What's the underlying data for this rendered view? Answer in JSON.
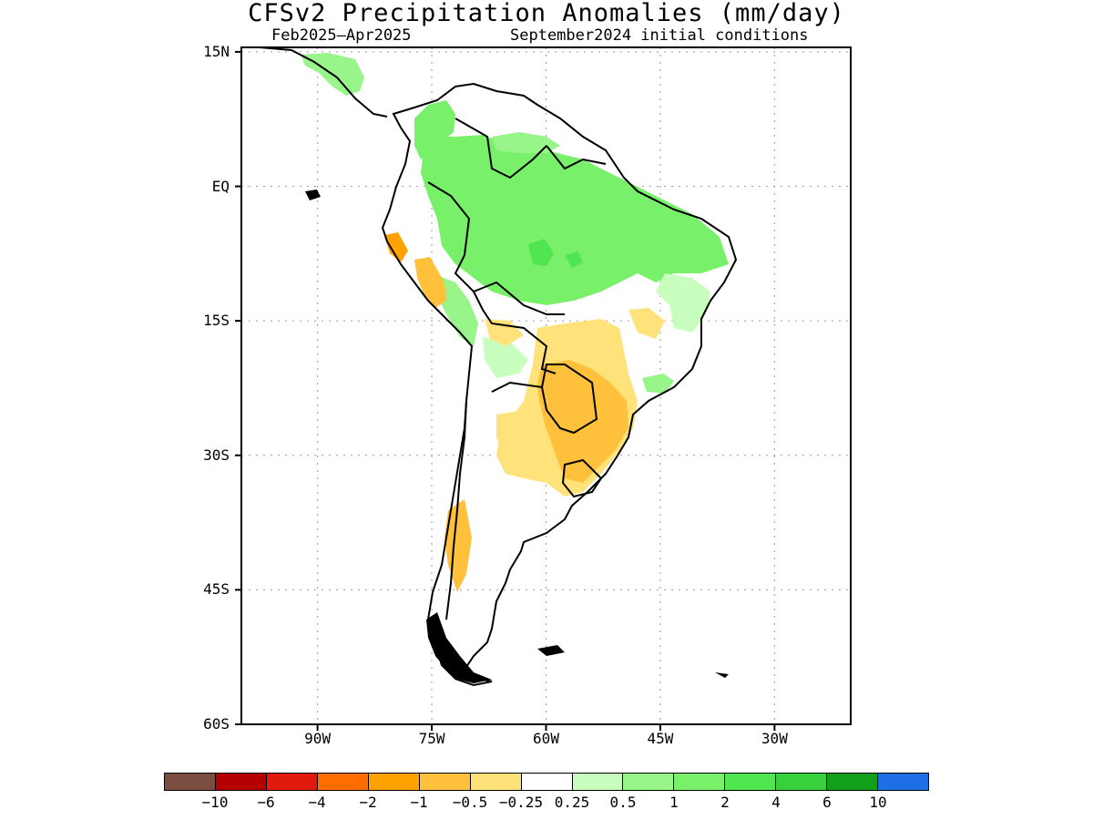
{
  "title": "CFSv2 Precipitation Anomalies (mm/day)",
  "period": "Feb2025–Apr2025",
  "initial_conditions": "September2024 initial conditions",
  "map": {
    "lat_labels": [
      {
        "text": "15N",
        "lat": 15
      },
      {
        "text": "EQ",
        "lat": 0
      },
      {
        "text": "15S",
        "lat": -15
      },
      {
        "text": "30S",
        "lat": -30
      },
      {
        "text": "45S",
        "lat": -45
      },
      {
        "text": "60S",
        "lat": -60
      }
    ],
    "lon_labels": [
      {
        "text": "90W",
        "lon": -90
      },
      {
        "text": "75W",
        "lon": -75
      },
      {
        "text": "60W",
        "lon": -60
      },
      {
        "text": "45W",
        "lon": -45
      },
      {
        "text": "30W",
        "lon": -30
      }
    ],
    "lon_range": [
      -100,
      -20
    ],
    "lat_range": [
      -60,
      15.5
    ],
    "grid": "dotted"
  },
  "colorbar": {
    "colors": [
      "#7a4f41",
      "#b40000",
      "#e01b0e",
      "#ff6c00",
      "#ffa200",
      "#ffc13b",
      "#ffe37a",
      "#ffffff",
      "#c8ffbe",
      "#98f58a",
      "#78f06a",
      "#50e650",
      "#37d23b",
      "#12a01a",
      "#1e6ee6"
    ],
    "labels": [
      "−10",
      "−6",
      "−4",
      "−2",
      "−1",
      "−0.5",
      "−0.25",
      "0.25",
      "0.5",
      "1",
      "2",
      "4",
      "6",
      "10"
    ]
  }
}
